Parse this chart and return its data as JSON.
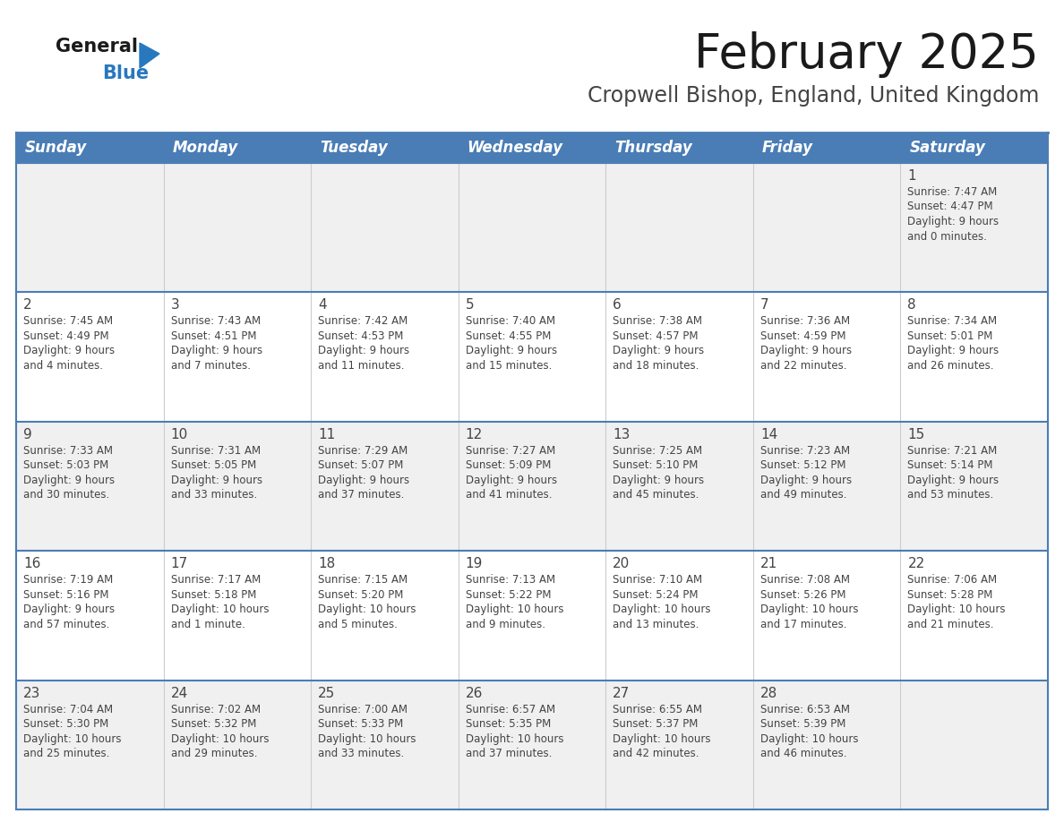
{
  "title": "February 2025",
  "subtitle": "Cropwell Bishop, England, United Kingdom",
  "header_bg_color": "#4A7DB5",
  "header_text_color": "#FFFFFF",
  "days_of_week": [
    "Sunday",
    "Monday",
    "Tuesday",
    "Wednesday",
    "Thursday",
    "Friday",
    "Saturday"
  ],
  "row_bg_even": "#F0F0F0",
  "row_bg_odd": "#FFFFFF",
  "cell_text_color": "#444444",
  "grid_line_color": "#4A7DB5",
  "title_color": "#1A1A1A",
  "subtitle_color": "#444444",
  "logo_general_color": "#1A1A1A",
  "logo_blue_color": "#2878BE",
  "calendar_data": [
    [
      null,
      null,
      null,
      null,
      null,
      null,
      {
        "day": 1,
        "sunrise": "7:47 AM",
        "sunset": "4:47 PM",
        "daylight_line1": "Daylight: 9 hours",
        "daylight_line2": "and 0 minutes."
      }
    ],
    [
      {
        "day": 2,
        "sunrise": "7:45 AM",
        "sunset": "4:49 PM",
        "daylight_line1": "Daylight: 9 hours",
        "daylight_line2": "and 4 minutes."
      },
      {
        "day": 3,
        "sunrise": "7:43 AM",
        "sunset": "4:51 PM",
        "daylight_line1": "Daylight: 9 hours",
        "daylight_line2": "and 7 minutes."
      },
      {
        "day": 4,
        "sunrise": "7:42 AM",
        "sunset": "4:53 PM",
        "daylight_line1": "Daylight: 9 hours",
        "daylight_line2": "and 11 minutes."
      },
      {
        "day": 5,
        "sunrise": "7:40 AM",
        "sunset": "4:55 PM",
        "daylight_line1": "Daylight: 9 hours",
        "daylight_line2": "and 15 minutes."
      },
      {
        "day": 6,
        "sunrise": "7:38 AM",
        "sunset": "4:57 PM",
        "daylight_line1": "Daylight: 9 hours",
        "daylight_line2": "and 18 minutes."
      },
      {
        "day": 7,
        "sunrise": "7:36 AM",
        "sunset": "4:59 PM",
        "daylight_line1": "Daylight: 9 hours",
        "daylight_line2": "and 22 minutes."
      },
      {
        "day": 8,
        "sunrise": "7:34 AM",
        "sunset": "5:01 PM",
        "daylight_line1": "Daylight: 9 hours",
        "daylight_line2": "and 26 minutes."
      }
    ],
    [
      {
        "day": 9,
        "sunrise": "7:33 AM",
        "sunset": "5:03 PM",
        "daylight_line1": "Daylight: 9 hours",
        "daylight_line2": "and 30 minutes."
      },
      {
        "day": 10,
        "sunrise": "7:31 AM",
        "sunset": "5:05 PM",
        "daylight_line1": "Daylight: 9 hours",
        "daylight_line2": "and 33 minutes."
      },
      {
        "day": 11,
        "sunrise": "7:29 AM",
        "sunset": "5:07 PM",
        "daylight_line1": "Daylight: 9 hours",
        "daylight_line2": "and 37 minutes."
      },
      {
        "day": 12,
        "sunrise": "7:27 AM",
        "sunset": "5:09 PM",
        "daylight_line1": "Daylight: 9 hours",
        "daylight_line2": "and 41 minutes."
      },
      {
        "day": 13,
        "sunrise": "7:25 AM",
        "sunset": "5:10 PM",
        "daylight_line1": "Daylight: 9 hours",
        "daylight_line2": "and 45 minutes."
      },
      {
        "day": 14,
        "sunrise": "7:23 AM",
        "sunset": "5:12 PM",
        "daylight_line1": "Daylight: 9 hours",
        "daylight_line2": "and 49 minutes."
      },
      {
        "day": 15,
        "sunrise": "7:21 AM",
        "sunset": "5:14 PM",
        "daylight_line1": "Daylight: 9 hours",
        "daylight_line2": "and 53 minutes."
      }
    ],
    [
      {
        "day": 16,
        "sunrise": "7:19 AM",
        "sunset": "5:16 PM",
        "daylight_line1": "Daylight: 9 hours",
        "daylight_line2": "and 57 minutes."
      },
      {
        "day": 17,
        "sunrise": "7:17 AM",
        "sunset": "5:18 PM",
        "daylight_line1": "Daylight: 10 hours",
        "daylight_line2": "and 1 minute."
      },
      {
        "day": 18,
        "sunrise": "7:15 AM",
        "sunset": "5:20 PM",
        "daylight_line1": "Daylight: 10 hours",
        "daylight_line2": "and 5 minutes."
      },
      {
        "day": 19,
        "sunrise": "7:13 AM",
        "sunset": "5:22 PM",
        "daylight_line1": "Daylight: 10 hours",
        "daylight_line2": "and 9 minutes."
      },
      {
        "day": 20,
        "sunrise": "7:10 AM",
        "sunset": "5:24 PM",
        "daylight_line1": "Daylight: 10 hours",
        "daylight_line2": "and 13 minutes."
      },
      {
        "day": 21,
        "sunrise": "7:08 AM",
        "sunset": "5:26 PM",
        "daylight_line1": "Daylight: 10 hours",
        "daylight_line2": "and 17 minutes."
      },
      {
        "day": 22,
        "sunrise": "7:06 AM",
        "sunset": "5:28 PM",
        "daylight_line1": "Daylight: 10 hours",
        "daylight_line2": "and 21 minutes."
      }
    ],
    [
      {
        "day": 23,
        "sunrise": "7:04 AM",
        "sunset": "5:30 PM",
        "daylight_line1": "Daylight: 10 hours",
        "daylight_line2": "and 25 minutes."
      },
      {
        "day": 24,
        "sunrise": "7:02 AM",
        "sunset": "5:32 PM",
        "daylight_line1": "Daylight: 10 hours",
        "daylight_line2": "and 29 minutes."
      },
      {
        "day": 25,
        "sunrise": "7:00 AM",
        "sunset": "5:33 PM",
        "daylight_line1": "Daylight: 10 hours",
        "daylight_line2": "and 33 minutes."
      },
      {
        "day": 26,
        "sunrise": "6:57 AM",
        "sunset": "5:35 PM",
        "daylight_line1": "Daylight: 10 hours",
        "daylight_line2": "and 37 minutes."
      },
      {
        "day": 27,
        "sunrise": "6:55 AM",
        "sunset": "5:37 PM",
        "daylight_line1": "Daylight: 10 hours",
        "daylight_line2": "and 42 minutes."
      },
      {
        "day": 28,
        "sunrise": "6:53 AM",
        "sunset": "5:39 PM",
        "daylight_line1": "Daylight: 10 hours",
        "daylight_line2": "and 46 minutes."
      },
      null
    ]
  ]
}
